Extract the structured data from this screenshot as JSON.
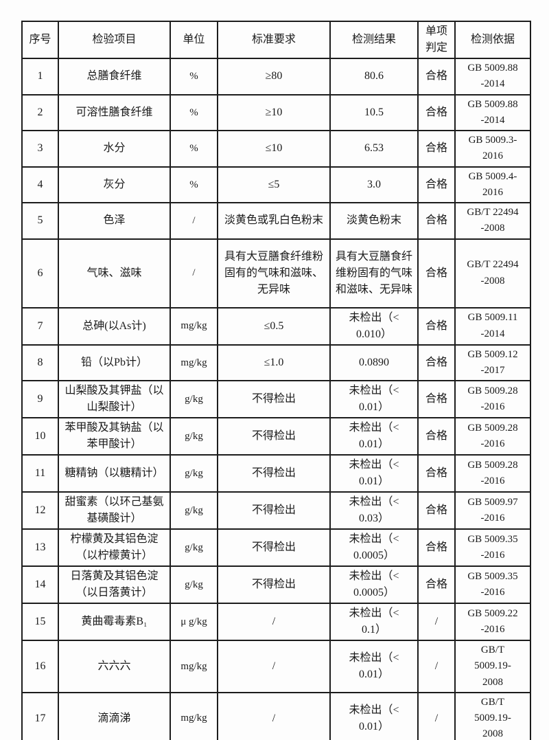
{
  "colors": {
    "border": "#1c1c1c",
    "text": "#1a1a1a",
    "page_background": "#fdfdfd"
  },
  "table": {
    "headers": {
      "no": "序号",
      "item": "检验项目",
      "unit": "单位",
      "requirement": "标准要求",
      "result": "检测结果",
      "judgment": "单项\n判定",
      "basis": "检测依据"
    },
    "rows": [
      {
        "no": "1",
        "item": "总膳食纤维",
        "unit": "%",
        "requirement": "≥80",
        "result": "80.6",
        "judgment": "合格",
        "basis": "GB 5009.88\n-2014"
      },
      {
        "no": "2",
        "item": "可溶性膳食纤维",
        "unit": "%",
        "requirement": "≥10",
        "result": "10.5",
        "judgment": "合格",
        "basis": "GB 5009.88\n-2014"
      },
      {
        "no": "3",
        "item": "水分",
        "unit": "%",
        "requirement": "≤10",
        "result": "6.53",
        "judgment": "合格",
        "basis": "GB 5009.3-\n2016"
      },
      {
        "no": "4",
        "item": "灰分",
        "unit": "%",
        "requirement": "≤5",
        "result": "3.0",
        "judgment": "合格",
        "basis": "GB 5009.4-\n2016"
      },
      {
        "no": "5",
        "item": "色泽",
        "unit": "/",
        "requirement": "淡黄色或乳白色粉末",
        "result": "淡黄色粉末",
        "judgment": "合格",
        "basis": "GB/T 22494\n-2008"
      },
      {
        "no": "6",
        "item": "气味、滋味",
        "unit": "/",
        "requirement": "具有大豆膳食纤维粉\n固有的气味和滋味、\n无异味",
        "result": "具有大豆膳食纤\n维粉固有的气味\n和滋味、无异味",
        "judgment": "合格",
        "basis": "GB/T 22494\n-2008"
      },
      {
        "no": "7",
        "item": "总砷(以As计)",
        "unit": "mg/kg",
        "requirement": "≤0.5",
        "result": "未检出（<\n0.010）",
        "judgment": "合格",
        "basis": "GB 5009.11\n-2014"
      },
      {
        "no": "8",
        "item": "铅（以Pb计）",
        "unit": "mg/kg",
        "requirement": "≤1.0",
        "result": "0.0890",
        "judgment": "合格",
        "basis": "GB 5009.12\n-2017"
      },
      {
        "no": "9",
        "item": "山梨酸及其钾盐（以\n山梨酸计）",
        "unit": "g/kg",
        "requirement": "不得检出",
        "result": "未检出（<\n0.01）",
        "judgment": "合格",
        "basis": "GB 5009.28\n-2016"
      },
      {
        "no": "10",
        "item": "苯甲酸及其钠盐（以\n苯甲酸计）",
        "unit": "g/kg",
        "requirement": "不得检出",
        "result": "未检出（<\n0.01）",
        "judgment": "合格",
        "basis": "GB 5009.28\n-2016"
      },
      {
        "no": "11",
        "item": "糖精钠（以糖精计）",
        "unit": "g/kg",
        "requirement": "不得检出",
        "result": "未检出（<\n0.01）",
        "judgment": "合格",
        "basis": "GB 5009.28\n-2016"
      },
      {
        "no": "12",
        "item": "甜蜜素（以环己基氨\n基磺酸计）",
        "unit": "g/kg",
        "requirement": "不得检出",
        "result": "未检出（<\n0.03）",
        "judgment": "合格",
        "basis": "GB 5009.97\n-2016"
      },
      {
        "no": "13",
        "item": "柠檬黄及其铝色淀\n（以柠檬黄计）",
        "unit": "g/kg",
        "requirement": "不得检出",
        "result": "未检出（<\n0.0005）",
        "judgment": "合格",
        "basis": "GB 5009.35\n-2016"
      },
      {
        "no": "14",
        "item": "日落黄及其铝色淀\n（以日落黄计）",
        "unit": "g/kg",
        "requirement": "不得检出",
        "result": "未检出（<\n0.0005）",
        "judgment": "合格",
        "basis": "GB 5009.35\n-2016"
      },
      {
        "no": "15",
        "item": "黄曲霉毒素B₁",
        "unit": "μ g/kg",
        "requirement": "/",
        "result": "未检出（<\n0.1）",
        "judgment": "/",
        "basis": "GB 5009.22\n-2016"
      },
      {
        "no": "16",
        "item": "六六六",
        "unit": "mg/kg",
        "requirement": "/",
        "result": "未检出（<\n0.01）",
        "judgment": "/",
        "basis": "GB/T\n5009.19-\n2008"
      },
      {
        "no": "17",
        "item": "滴滴涕",
        "unit": "mg/kg",
        "requirement": "/",
        "result": "未检出（<\n0.01）",
        "judgment": "/",
        "basis": "GB/T\n5009.19-\n2008"
      }
    ]
  }
}
